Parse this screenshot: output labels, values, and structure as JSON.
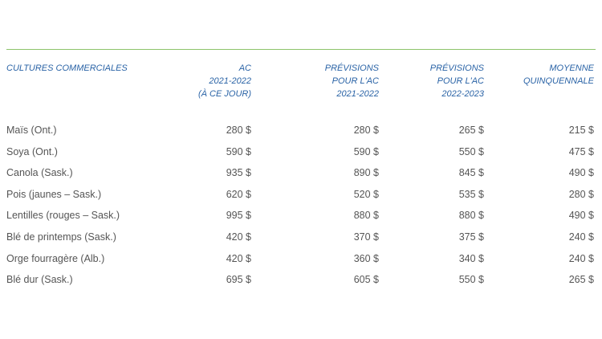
{
  "table": {
    "header": [
      [
        "CULTURES COMMERCIALES"
      ],
      [
        "AC",
        "2021-2022",
        "(À CE JOUR)"
      ],
      [
        "PRÉVISIONS",
        "POUR L'AC",
        "2021-2022"
      ],
      [
        "PRÉVISIONS",
        "POUR L'AC",
        "2022-2023"
      ],
      [
        "MOYENNE",
        "QUINQUENNALE"
      ]
    ],
    "rows": [
      [
        "Maïs (Ont.)",
        "280 $",
        "280 $",
        "265 $",
        "215 $"
      ],
      [
        "Soya (Ont.)",
        "590 $",
        "590 $",
        "550 $",
        "475 $"
      ],
      [
        "Canola (Sask.)",
        "935 $",
        "890 $",
        "845 $",
        "490 $"
      ],
      [
        "Pois (jaunes – Sask.)",
        "620 $",
        "520 $",
        "535 $",
        "280 $"
      ],
      [
        "Lentilles (rouges – Sask.)",
        "995 $",
        "880 $",
        "880 $",
        "490 $"
      ],
      [
        "Blé de printemps (Sask.)",
        "420 $",
        "370 $",
        "375 $",
        "240 $"
      ],
      [
        "Orge fourragère (Alb.)",
        "420 $",
        "360 $",
        "340 $",
        "240 $"
      ],
      [
        "Blé dur (Sask.)",
        "695 $",
        "605 $",
        "550 $",
        "265 $"
      ]
    ]
  }
}
